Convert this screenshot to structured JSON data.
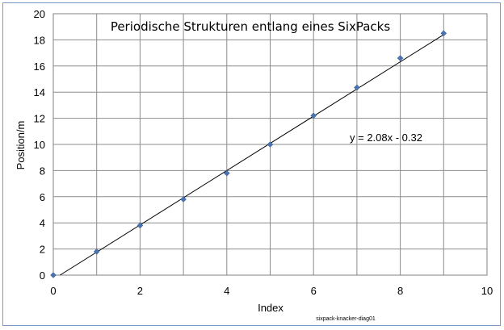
{
  "chart_data": {
    "type": "scatter",
    "title": "Periodische Strukturen entlang eines SixPacks",
    "xlabel": "Index",
    "ylabel": "Position/m",
    "xlim": [
      0,
      10
    ],
    "ylim": [
      0,
      20
    ],
    "xticks": [
      0,
      2,
      4,
      6,
      8,
      10
    ],
    "yticks": [
      0,
      2,
      4,
      6,
      8,
      10,
      12,
      14,
      16,
      18,
      20
    ],
    "grid": true,
    "series": [
      {
        "color": "#4a73b2",
        "marker": "diamond",
        "x": [
          0,
          1,
          2,
          3,
          4,
          5,
          6,
          7,
          8,
          9
        ],
        "y": [
          0.0,
          1.8,
          3.8,
          5.8,
          7.8,
          10.0,
          12.2,
          14.35,
          16.6,
          18.5
        ]
      }
    ],
    "trendline": {
      "type": "linear",
      "slope": 2.08,
      "intercept": -0.32,
      "x_range": [
        0,
        9
      ],
      "label": "y = 2.08x - 0.32"
    },
    "footnote": "sixpack-knacker-diag01"
  }
}
